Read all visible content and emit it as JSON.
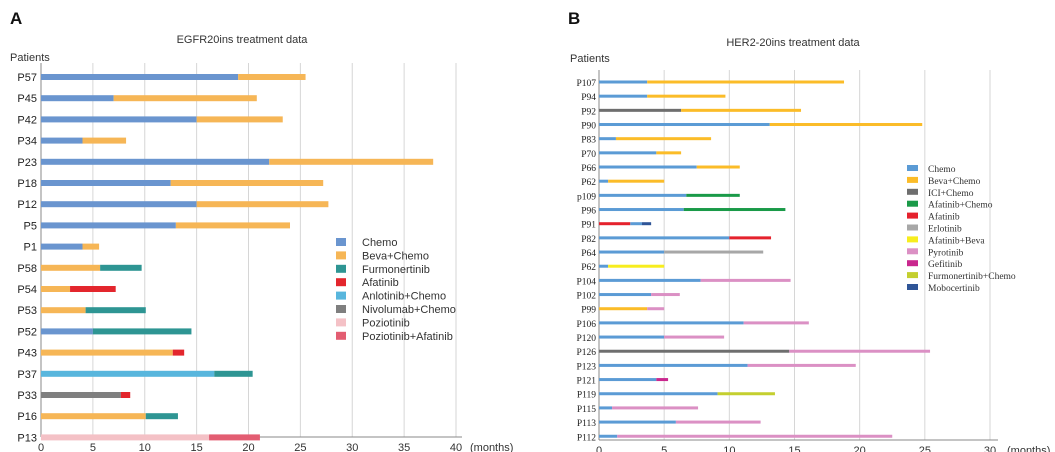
{
  "colors": {
    "Chemo": "#6a95cf",
    "Beva+Chemo": "#f6b656",
    "Furmonertinib": "#2e9593",
    "Afatinib": "#e3262d",
    "Anlotinib+Chemo": "#58b6dd",
    "Nivolumab+Chemo": "#7f7f7f",
    "Poziotinib": "#f4c1c6",
    "Poziotinib+Afatinib": "#e35d72",
    "B_Chemo": "#5b9bd5",
    "B_Beva+Chemo": "#fbbc28",
    "B_ICI+Chemo": "#6e6e6e",
    "B_Afatinib+Chemo": "#1a9a48",
    "B_Afatinib": "#e5222d",
    "B_Erlotinib": "#a7a7a7",
    "B_Afatinib+Beva": "#f7ed1e",
    "B_Pyrotinib": "#db90c4",
    "B_Gefitinib": "#c9278e",
    "B_Furmonertinib+Chemo": "#c4cf2f",
    "B_Mobocertinib": "#2f5597"
  },
  "chart_data": [
    {
      "panel": "A",
      "type": "bar",
      "orientation": "horizontal",
      "stacked": true,
      "title": "EGFR20ins treatment data",
      "ylabel": "Patients",
      "xlabel": "(months)",
      "xlim": [
        0,
        40
      ],
      "xticks": [
        0,
        5,
        10,
        15,
        20,
        25,
        30,
        35,
        40
      ],
      "grid": true,
      "legend_position": "right",
      "legend": [
        "Chemo",
        "Beva+Chemo",
        "Furmonertinib",
        "Afatinib",
        "Anlotinib+Chemo",
        "Nivolumab+Chemo",
        "Poziotinib",
        "Poziotinib+Afatinib"
      ],
      "categories": [
        "P57",
        "P45",
        "P42",
        "P34",
        "P23",
        "P18",
        "P12",
        "P5",
        "P1",
        "P58",
        "P54",
        "P53",
        "P52",
        "P43",
        "P37",
        "P33",
        "P16",
        "P13"
      ],
      "rows": [
        {
          "patient": "P57",
          "segments": [
            {
              "treatment": "Chemo",
              "start": 0,
              "end": 19
            },
            {
              "treatment": "Beva+Chemo",
              "start": 19,
              "end": 25.5
            }
          ]
        },
        {
          "patient": "P45",
          "segments": [
            {
              "treatment": "Chemo",
              "start": 0,
              "end": 7
            },
            {
              "treatment": "Beva+Chemo",
              "start": 7,
              "end": 20.8
            }
          ]
        },
        {
          "patient": "P42",
          "segments": [
            {
              "treatment": "Chemo",
              "start": 0,
              "end": 15
            },
            {
              "treatment": "Beva+Chemo",
              "start": 15,
              "end": 23.3
            }
          ]
        },
        {
          "patient": "P34",
          "segments": [
            {
              "treatment": "Chemo",
              "start": 0,
              "end": 4
            },
            {
              "treatment": "Beva+Chemo",
              "start": 4,
              "end": 8.2
            }
          ]
        },
        {
          "patient": "P23",
          "segments": [
            {
              "treatment": "Chemo",
              "start": 0,
              "end": 22
            },
            {
              "treatment": "Beva+Chemo",
              "start": 22,
              "end": 37.8
            }
          ]
        },
        {
          "patient": "P18",
          "segments": [
            {
              "treatment": "Chemo",
              "start": 0,
              "end": 12.5
            },
            {
              "treatment": "Beva+Chemo",
              "start": 12.5,
              "end": 27.2
            }
          ]
        },
        {
          "patient": "P12",
          "segments": [
            {
              "treatment": "Chemo",
              "start": 0,
              "end": 15
            },
            {
              "treatment": "Beva+Chemo",
              "start": 15,
              "end": 27.7
            }
          ]
        },
        {
          "patient": "P5",
          "segments": [
            {
              "treatment": "Chemo",
              "start": 0,
              "end": 13
            },
            {
              "treatment": "Beva+Chemo",
              "start": 13,
              "end": 24
            }
          ]
        },
        {
          "patient": "P1",
          "segments": [
            {
              "treatment": "Chemo",
              "start": 0,
              "end": 4
            },
            {
              "treatment": "Beva+Chemo",
              "start": 4,
              "end": 5.6
            }
          ]
        },
        {
          "patient": "P58",
          "segments": [
            {
              "treatment": "Beva+Chemo",
              "start": 0,
              "end": 5.7
            },
            {
              "treatment": "Furmonertinib",
              "start": 5.7,
              "end": 9.7
            }
          ]
        },
        {
          "patient": "P54",
          "segments": [
            {
              "treatment": "Beva+Chemo",
              "start": 0,
              "end": 2.8
            },
            {
              "treatment": "Afatinib",
              "start": 2.8,
              "end": 7.2
            }
          ]
        },
        {
          "patient": "P53",
          "segments": [
            {
              "treatment": "Beva+Chemo",
              "start": 0,
              "end": 4.3
            },
            {
              "treatment": "Furmonertinib",
              "start": 4.3,
              "end": 10.1
            }
          ]
        },
        {
          "patient": "P52",
          "segments": [
            {
              "treatment": "Chemo",
              "start": 0,
              "end": 5
            },
            {
              "treatment": "Furmonertinib",
              "start": 5,
              "end": 14.5
            }
          ]
        },
        {
          "patient": "P43",
          "segments": [
            {
              "treatment": "Beva+Chemo",
              "start": 0,
              "end": 12.7
            },
            {
              "treatment": "Afatinib",
              "start": 12.7,
              "end": 13.8
            }
          ]
        },
        {
          "patient": "P37",
          "segments": [
            {
              "treatment": "Anlotinib+Chemo",
              "start": 0,
              "end": 16.7
            },
            {
              "treatment": "Furmonertinib",
              "start": 16.7,
              "end": 20.4
            }
          ]
        },
        {
          "patient": "P33",
          "segments": [
            {
              "treatment": "Nivolumab+Chemo",
              "start": 0,
              "end": 7.7
            },
            {
              "treatment": "Afatinib",
              "start": 7.7,
              "end": 8.6
            }
          ]
        },
        {
          "patient": "P16",
          "segments": [
            {
              "treatment": "Beva+Chemo",
              "start": 0,
              "end": 10.1
            },
            {
              "treatment": "Furmonertinib",
              "start": 10.1,
              "end": 13.2
            }
          ]
        },
        {
          "patient": "P13",
          "segments": [
            {
              "treatment": "Poziotinib",
              "start": 0,
              "end": 16.2
            },
            {
              "treatment": "Poziotinib+Afatinib",
              "start": 16.2,
              "end": 21.1
            }
          ]
        }
      ]
    },
    {
      "panel": "B",
      "type": "bar",
      "orientation": "horizontal",
      "stacked": true,
      "title": "HER2-20ins treatment data",
      "ylabel": "Patients",
      "xlabel": "(months)",
      "xlim": [
        0,
        30
      ],
      "xticks": [
        0,
        5,
        10,
        15,
        20,
        25,
        30
      ],
      "grid": true,
      "legend_position": "right",
      "legend": [
        "Chemo",
        "Beva+Chemo",
        "ICI+Chemo",
        "Afatinib+Chemo",
        "Afatinib",
        "Erlotinib",
        "Afatinib+Beva",
        "Pyrotinib",
        "Gefitinib",
        "Furmonertinib+Chemo",
        "Mobocertinib"
      ],
      "categories": [
        "P107",
        "P94",
        "P92",
        "P90",
        "P83",
        "P70",
        "P66",
        "P62",
        "p109",
        "P96",
        "P91",
        "P82",
        "P64",
        "P62",
        "P104",
        "P102",
        "P99",
        "P106",
        "P120",
        "P126",
        "P123",
        "P121",
        "P119",
        "P115",
        "P113",
        "P112"
      ],
      "rows": [
        {
          "patient": "P107",
          "segments": [
            {
              "treatment": "Chemo",
              "start": 0,
              "end": 3.7
            },
            {
              "treatment": "Beva+Chemo",
              "start": 3.7,
              "end": 18.8
            }
          ]
        },
        {
          "patient": "P94",
          "segments": [
            {
              "treatment": "Chemo",
              "start": 0,
              "end": 3.7
            },
            {
              "treatment": "Beva+Chemo",
              "start": 3.7,
              "end": 9.7
            }
          ]
        },
        {
          "patient": "P92",
          "segments": [
            {
              "treatment": "ICI+Chemo",
              "start": 0,
              "end": 6.3
            },
            {
              "treatment": "Beva+Chemo",
              "start": 6.3,
              "end": 15.5
            }
          ]
        },
        {
          "patient": "P90",
          "segments": [
            {
              "treatment": "Chemo",
              "start": 0,
              "end": 13.1
            },
            {
              "treatment": "Beva+Chemo",
              "start": 13.1,
              "end": 24.8
            }
          ]
        },
        {
          "patient": "P83",
          "segments": [
            {
              "treatment": "Chemo",
              "start": 0,
              "end": 1.3
            },
            {
              "treatment": "Beva+Chemo",
              "start": 1.3,
              "end": 8.6
            }
          ]
        },
        {
          "patient": "P70",
          "segments": [
            {
              "treatment": "Chemo",
              "start": 0,
              "end": 4.4
            },
            {
              "treatment": "Beva+Chemo",
              "start": 4.4,
              "end": 6.3
            }
          ]
        },
        {
          "patient": "P66",
          "segments": [
            {
              "treatment": "Chemo",
              "start": 0,
              "end": 7.5
            },
            {
              "treatment": "Beva+Chemo",
              "start": 7.5,
              "end": 10.8
            }
          ]
        },
        {
          "patient": "P62",
          "segments": [
            {
              "treatment": "Chemo",
              "start": 0,
              "end": 0.7
            },
            {
              "treatment": "Beva+Chemo",
              "start": 0.7,
              "end": 5
            }
          ]
        },
        {
          "patient": "p109",
          "segments": [
            {
              "treatment": "Chemo",
              "start": 0,
              "end": 6.7
            },
            {
              "treatment": "Afatinib+Chemo",
              "start": 6.7,
              "end": 10.8
            }
          ]
        },
        {
          "patient": "P96",
          "segments": [
            {
              "treatment": "Chemo",
              "start": 0,
              "end": 6.5
            },
            {
              "treatment": "Afatinib+Chemo",
              "start": 6.5,
              "end": 14.3
            }
          ]
        },
        {
          "patient": "P91",
          "segments": [
            {
              "treatment": "Afatinib",
              "start": 0,
              "end": 2.4
            },
            {
              "treatment": "Chemo",
              "start": 2.4,
              "end": 3.3
            },
            {
              "treatment": "Mobocertinib",
              "start": 3.3,
              "end": 4
            }
          ]
        },
        {
          "patient": "P82",
          "segments": [
            {
              "treatment": "Chemo",
              "start": 0,
              "end": 10
            },
            {
              "treatment": "Afatinib",
              "start": 10,
              "end": 13.2
            }
          ]
        },
        {
          "patient": "P64",
          "segments": [
            {
              "treatment": "Chemo",
              "start": 0,
              "end": 5
            },
            {
              "treatment": "Erlotinib",
              "start": 5,
              "end": 12.6
            }
          ]
        },
        {
          "patient": "P62",
          "segments": [
            {
              "treatment": "Chemo",
              "start": 0,
              "end": 0.7
            },
            {
              "treatment": "Afatinib+Beva",
              "start": 0.7,
              "end": 5
            }
          ]
        },
        {
          "patient": "P104",
          "segments": [
            {
              "treatment": "Chemo",
              "start": 0,
              "end": 7.8
            },
            {
              "treatment": "Pyrotinib",
              "start": 7.8,
              "end": 14.7
            }
          ]
        },
        {
          "patient": "P102",
          "segments": [
            {
              "treatment": "Chemo",
              "start": 0,
              "end": 4
            },
            {
              "treatment": "Pyrotinib",
              "start": 4,
              "end": 6.2
            }
          ]
        },
        {
          "patient": "P99",
          "segments": [
            {
              "treatment": "Beva+Chemo",
              "start": 0,
              "end": 3.7
            },
            {
              "treatment": "Pyrotinib",
              "start": 3.7,
              "end": 5
            }
          ]
        },
        {
          "patient": "P106",
          "segments": [
            {
              "treatment": "Chemo",
              "start": 0,
              "end": 11.1
            },
            {
              "treatment": "Pyrotinib",
              "start": 11.1,
              "end": 16.1
            }
          ]
        },
        {
          "patient": "P120",
          "segments": [
            {
              "treatment": "Chemo",
              "start": 0,
              "end": 5
            },
            {
              "treatment": "Pyrotinib",
              "start": 5,
              "end": 9.6
            }
          ]
        },
        {
          "patient": "P126",
          "segments": [
            {
              "treatment": "ICI+Chemo",
              "start": 0,
              "end": 14.6
            },
            {
              "treatment": "Pyrotinib",
              "start": 14.6,
              "end": 25.4
            }
          ]
        },
        {
          "patient": "P123",
          "segments": [
            {
              "treatment": "Chemo",
              "start": 0,
              "end": 11.4
            },
            {
              "treatment": "Pyrotinib",
              "start": 11.4,
              "end": 19.7
            }
          ]
        },
        {
          "patient": "P121",
          "segments": [
            {
              "treatment": "Chemo",
              "start": 0,
              "end": 4.4
            },
            {
              "treatment": "Gefitinib",
              "start": 4.4,
              "end": 5.3
            }
          ]
        },
        {
          "patient": "P119",
          "segments": [
            {
              "treatment": "Chemo",
              "start": 0,
              "end": 9.1
            },
            {
              "treatment": "Furmonertinib+Chemo",
              "start": 9.1,
              "end": 13.5
            }
          ]
        },
        {
          "patient": "P115",
          "segments": [
            {
              "treatment": "Chemo",
              "start": 0,
              "end": 1
            },
            {
              "treatment": "Pyrotinib",
              "start": 1,
              "end": 7.6
            }
          ]
        },
        {
          "patient": "P113",
          "segments": [
            {
              "treatment": "Chemo",
              "start": 0,
              "end": 5.9
            },
            {
              "treatment": "Pyrotinib",
              "start": 5.9,
              "end": 12.4
            }
          ]
        },
        {
          "patient": "P112",
          "segments": [
            {
              "treatment": "Chemo",
              "start": 0,
              "end": 1.4
            },
            {
              "treatment": "Pyrotinib",
              "start": 1.4,
              "end": 22.5
            }
          ]
        }
      ]
    }
  ]
}
